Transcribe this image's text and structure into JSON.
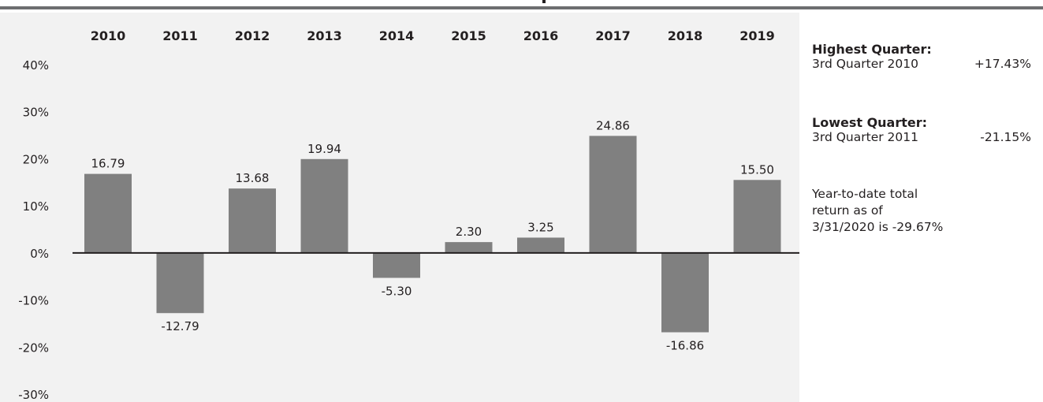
{
  "chart_data": {
    "type": "bar",
    "categories": [
      "2010",
      "2011",
      "2012",
      "2013",
      "2014",
      "2015",
      "2016",
      "2017",
      "2018",
      "2019"
    ],
    "values": [
      16.79,
      -12.79,
      13.68,
      19.94,
      -5.3,
      2.3,
      3.25,
      24.86,
      -16.86,
      15.5
    ],
    "value_labels": [
      "16.79",
      "-12.79",
      "13.68",
      "19.94",
      "-5.30",
      "2.30",
      "3.25",
      "24.86",
      "-16.86",
      "15.50"
    ],
    "y_ticks": [
      40,
      30,
      20,
      10,
      0,
      -10,
      -20,
      -30
    ],
    "y_tick_labels": [
      "40%",
      "30%",
      "20%",
      "10%",
      "0%",
      "-10%",
      "-20%",
      "-30%"
    ],
    "ylim": [
      -30,
      40
    ],
    "category_axis_position": "top",
    "grid": false,
    "title": "",
    "xlabel": "",
    "ylabel": ""
  },
  "colors": {
    "bar": "#808080",
    "plot_background": "#f2f2f2",
    "zero_line": "#231f20",
    "top_rule": "#6d6e70",
    "text": "#231f20"
  },
  "sidebar": {
    "highest": {
      "heading": "Highest Quarter:",
      "period": "3rd Quarter 2010",
      "value": "+17.43%"
    },
    "lowest": {
      "heading": "Lowest Quarter:",
      "period": "3rd Quarter 2011",
      "value": "-21.15%"
    },
    "ytd": {
      "line1": "Year-to-date total",
      "line2": "return as of",
      "line3": "3/31/2020 is -29.67%"
    }
  }
}
